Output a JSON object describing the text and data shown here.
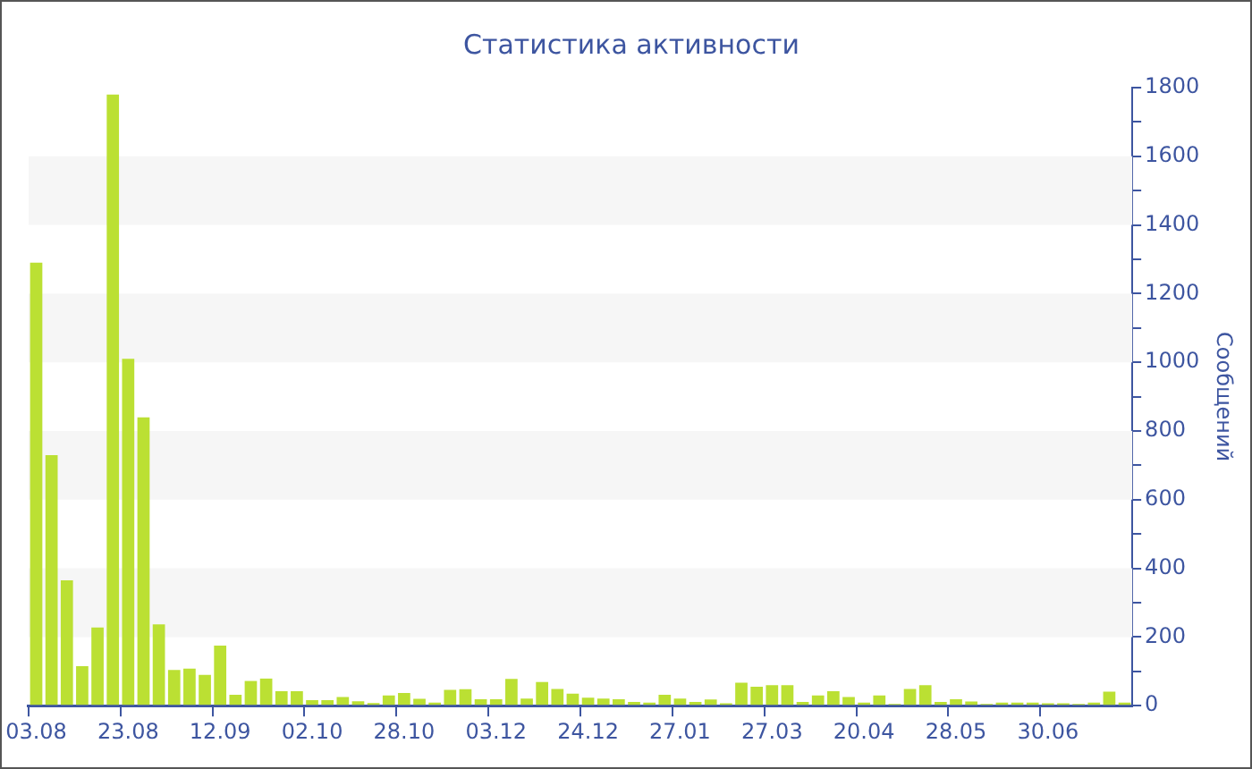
{
  "chart_data": {
    "type": "bar",
    "title": "Статистика активности",
    "ylabel": "Сообщений",
    "color": "#bbe033",
    "categories": [
      "03.08",
      null,
      null,
      null,
      null,
      null,
      "23.08",
      null,
      null,
      null,
      null,
      null,
      "12.09",
      null,
      null,
      null,
      null,
      null,
      "02.10",
      null,
      null,
      null,
      null,
      null,
      "28.10",
      null,
      null,
      null,
      null,
      null,
      "03.12",
      null,
      null,
      null,
      null,
      null,
      "24.12",
      null,
      null,
      null,
      null,
      null,
      "27.01",
      null,
      null,
      null,
      null,
      null,
      "27.03",
      null,
      null,
      null,
      null,
      null,
      "20.04",
      null,
      null,
      null,
      null,
      null,
      "28.05",
      null,
      null,
      null,
      null,
      null,
      "30.06",
      null,
      null,
      null,
      null,
      null
    ],
    "values": [
      1290,
      730,
      365,
      115,
      228,
      1780,
      1010,
      840,
      237,
      104,
      108,
      90,
      175,
      32,
      72,
      79,
      42,
      42,
      16,
      16,
      25,
      13,
      8,
      30,
      37,
      20,
      9,
      46,
      48,
      19,
      19,
      78,
      21,
      69,
      49,
      35,
      23,
      21,
      19,
      11,
      9,
      32,
      21,
      11,
      18,
      7,
      67,
      55,
      60,
      60,
      11,
      30,
      42,
      25,
      9,
      30,
      5,
      49,
      60,
      11,
      19,
      12,
      5,
      9,
      9,
      9,
      7,
      7,
      5,
      9,
      41,
      9
    ],
    "ylim": [
      0,
      1800
    ],
    "yticks": [
      0,
      {
        "value": 100,
        "label": null
      },
      200,
      {
        "value": 300,
        "label": null
      },
      400,
      {
        "value": 500,
        "label": null
      },
      600,
      {
        "value": 700,
        "label": null
      },
      800,
      {
        "value": 900,
        "label": null
      },
      1000,
      {
        "value": 1100,
        "label": null
      },
      1200,
      {
        "value": 1300,
        "label": null
      },
      1400,
      {
        "value": 1500,
        "label": null
      },
      1600,
      {
        "value": 1700,
        "label": null
      },
      1800
    ],
    "bands": [
      {
        "axis": "y",
        "from": 200,
        "to": 400,
        "color": "#f6f6f6"
      },
      {
        "axis": "y",
        "from": 600,
        "to": 800,
        "color": "#f6f6f6"
      },
      {
        "axis": "y",
        "from": 1000,
        "to": 1200,
        "color": "#f6f6f6"
      },
      {
        "axis": "y",
        "from": 1400,
        "to": 1600,
        "color": "#f6f6f6"
      }
    ]
  }
}
